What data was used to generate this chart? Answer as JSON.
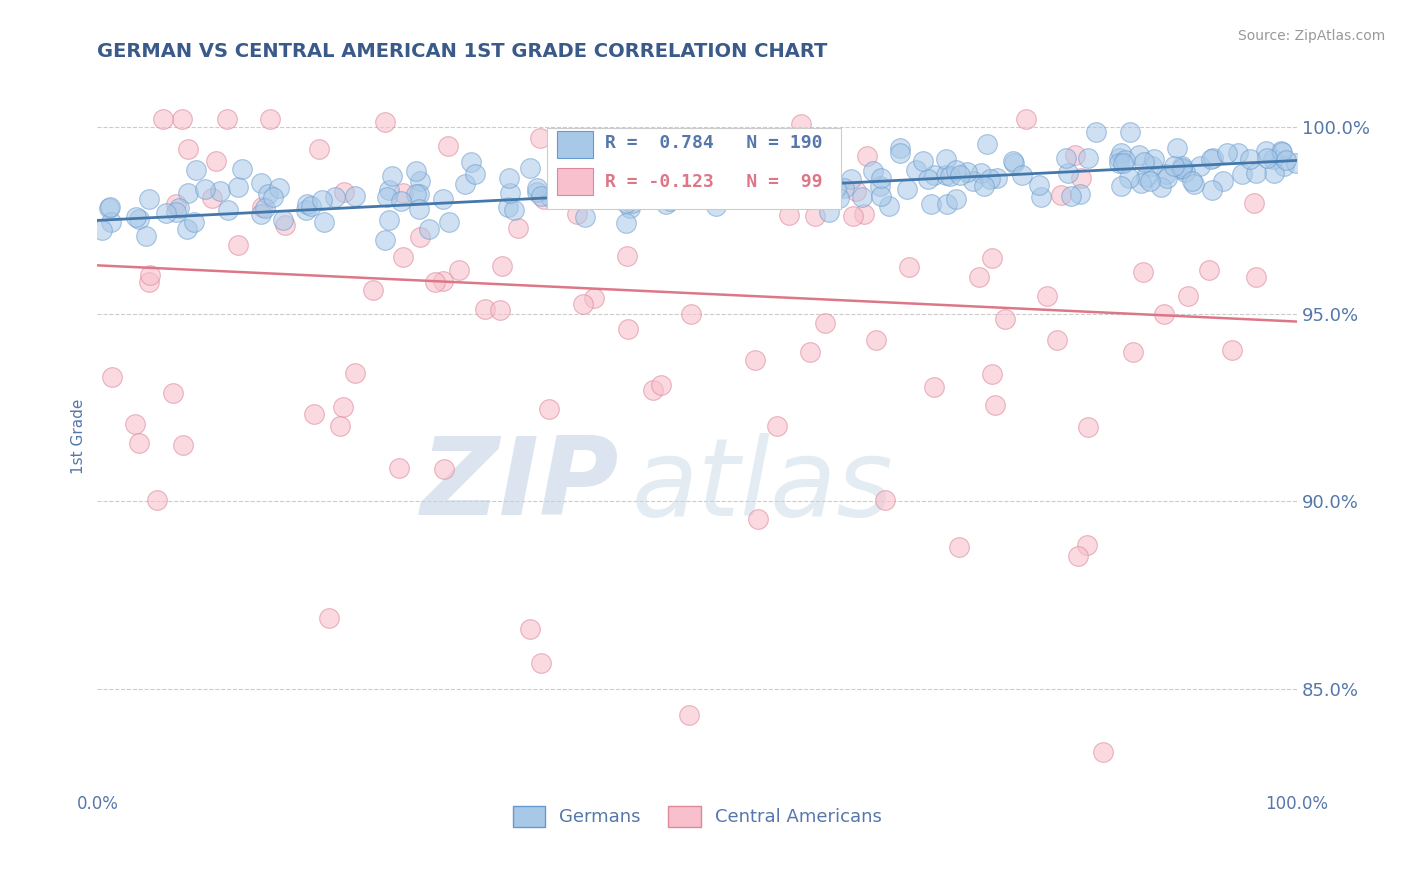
{
  "title": "GERMAN VS CENTRAL AMERICAN 1ST GRADE CORRELATION CHART",
  "source": "Source: ZipAtlas.com",
  "ylabel": "1st Grade",
  "yticks": [
    0.85,
    0.9,
    0.95,
    1.0
  ],
  "ytick_labels": [
    "85.0%",
    "90.0%",
    "95.0%",
    "100.0%"
  ],
  "xlim": [
    0.0,
    1.0
  ],
  "ylim": [
    0.823,
    1.012
  ],
  "blue_R": 0.784,
  "blue_N": 190,
  "pink_R": -0.123,
  "pink_N": 99,
  "blue_color": "#a8c8e8",
  "blue_edge_color": "#6699cc",
  "blue_line_color": "#4477aa",
  "pink_color": "#f8c0cc",
  "pink_edge_color": "#dd8899",
  "pink_line_color": "#dd7788",
  "grid_color": "#cccccc",
  "title_color": "#3a5a8a",
  "axis_label_color": "#5577aa",
  "tick_label_color": "#5577aa",
  "legend_label_blue": "Germans",
  "legend_label_pink": "Central Americans",
  "watermark_zip_color": "#c8d8e8",
  "watermark_atlas_color": "#c8d8e8",
  "blue_trend_start_y": 0.975,
  "blue_trend_end_y": 0.991,
  "pink_trend_start_y": 0.963,
  "pink_trend_end_y": 0.948
}
